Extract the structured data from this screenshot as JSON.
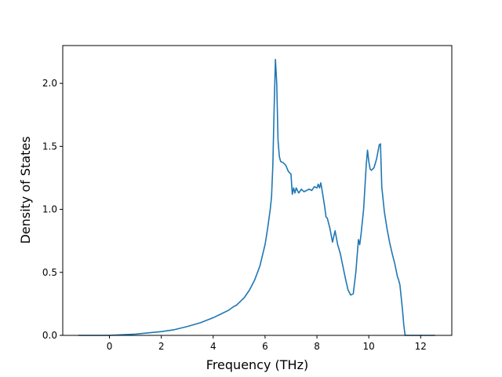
{
  "chart_data": {
    "type": "line",
    "title": "",
    "xlabel": "Frequency (THz)",
    "ylabel": "Density of States",
    "xlim": [
      -1.8,
      13.2
    ],
    "ylim": [
      0,
      2.3
    ],
    "xticks": [
      0,
      2,
      4,
      6,
      8,
      10,
      12
    ],
    "xtick_labels": [
      "0",
      "2",
      "4",
      "6",
      "8",
      "10",
      "12"
    ],
    "yticks": [
      0.0,
      0.5,
      1.0,
      1.5,
      2.0
    ],
    "ytick_labels": [
      "0.0",
      "0.5",
      "1.0",
      "1.5",
      "2.0"
    ],
    "grid": false,
    "legend": "none",
    "series": [
      {
        "color": "#1f77b4",
        "x": [
          -1.2,
          -0.5,
          0.0,
          0.5,
          1.0,
          1.5,
          2.0,
          2.5,
          3.0,
          3.5,
          4.0,
          4.3,
          4.6,
          4.8,
          4.9,
          5.0,
          5.2,
          5.4,
          5.6,
          5.8,
          6.0,
          6.1,
          6.2,
          6.25,
          6.3,
          6.35,
          6.4,
          6.45,
          6.5,
          6.55,
          6.6,
          6.7,
          6.8,
          6.9,
          7.0,
          7.05,
          7.1,
          7.15,
          7.2,
          7.3,
          7.4,
          7.5,
          7.6,
          7.7,
          7.8,
          7.9,
          8.0,
          8.05,
          8.1,
          8.15,
          8.2,
          8.3,
          8.35,
          8.4,
          8.5,
          8.6,
          8.7,
          8.8,
          8.9,
          9.0,
          9.1,
          9.2,
          9.3,
          9.4,
          9.5,
          9.6,
          9.65,
          9.7,
          9.75,
          9.8,
          9.9,
          9.95,
          10.0,
          10.05,
          10.1,
          10.2,
          10.3,
          10.4,
          10.45,
          10.5,
          10.6,
          10.7,
          10.8,
          10.9,
          11.0,
          11.1,
          11.15,
          11.2,
          11.3,
          11.35,
          11.4,
          11.5,
          11.8,
          12.2,
          12.55
        ],
        "y": [
          0.0,
          0.0,
          0.0,
          0.005,
          0.01,
          0.02,
          0.03,
          0.045,
          0.07,
          0.1,
          0.14,
          0.17,
          0.2,
          0.23,
          0.24,
          0.26,
          0.3,
          0.36,
          0.44,
          0.55,
          0.72,
          0.85,
          1.0,
          1.1,
          1.35,
          1.8,
          2.19,
          2.0,
          1.55,
          1.42,
          1.38,
          1.37,
          1.35,
          1.3,
          1.28,
          1.12,
          1.17,
          1.13,
          1.17,
          1.13,
          1.16,
          1.14,
          1.15,
          1.16,
          1.15,
          1.18,
          1.17,
          1.2,
          1.17,
          1.21,
          1.15,
          1.02,
          0.94,
          0.93,
          0.85,
          0.74,
          0.83,
          0.72,
          0.65,
          0.55,
          0.45,
          0.36,
          0.32,
          0.33,
          0.5,
          0.76,
          0.72,
          0.8,
          0.9,
          1.0,
          1.35,
          1.47,
          1.38,
          1.32,
          1.31,
          1.33,
          1.4,
          1.51,
          1.52,
          1.18,
          0.98,
          0.85,
          0.74,
          0.65,
          0.57,
          0.47,
          0.44,
          0.4,
          0.2,
          0.08,
          0.0,
          0.0,
          0.0,
          0.0,
          0.0
        ]
      }
    ]
  }
}
